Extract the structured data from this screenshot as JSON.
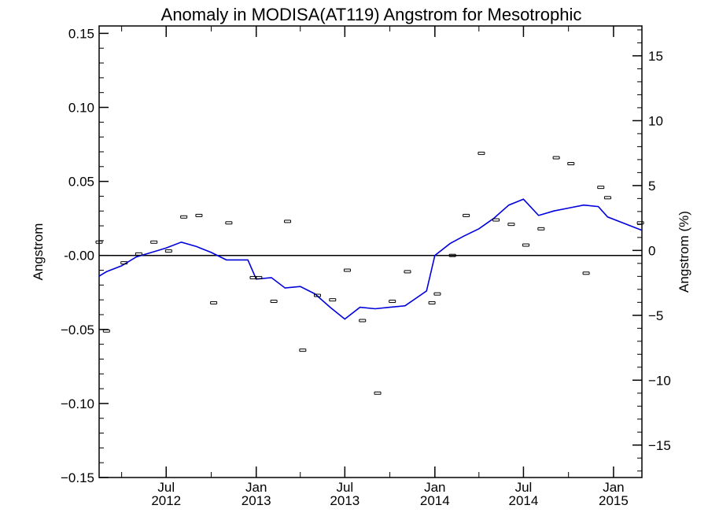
{
  "chart_data": {
    "type": "line",
    "title": "Anomaly in MODISA(AT119) Angstrom for Mesotrophic",
    "ylabel": "Angstrom",
    "ylabel_right": "Angstrom (%)",
    "ylim": [
      -0.15,
      0.155
    ],
    "ylim_right": [
      -17.5,
      17.3
    ],
    "xlim": [
      "2012-02-15",
      "2015-02-28"
    ],
    "y_ticks": [
      "0.15",
      "0.10",
      "0.05",
      "-0.00",
      "−0.05",
      "−0.10",
      "−0.15"
    ],
    "y_tick_values": [
      0.15,
      0.1,
      0.05,
      0.0,
      -0.05,
      -0.1,
      -0.15
    ],
    "y_right_ticks": [
      "15",
      "10",
      "5",
      "0",
      "−5",
      "−10",
      "−15"
    ],
    "y_right_tick_values": [
      15,
      10,
      5,
      0,
      -5,
      -10,
      -15
    ],
    "x_ticks": [
      {
        "date": "2012-07-01",
        "month": "Jul",
        "year": "2012"
      },
      {
        "date": "2013-01-01",
        "month": "Jan",
        "year": "2013"
      },
      {
        "date": "2013-07-01",
        "month": "Jul",
        "year": "2013"
      },
      {
        "date": "2014-01-01",
        "month": "Jan",
        "year": "2014"
      },
      {
        "date": "2014-07-01",
        "month": "Jul",
        "year": "2014"
      },
      {
        "date": "2015-01-01",
        "month": "Jan",
        "year": "2015"
      }
    ],
    "x_minor_ticks": [
      "2012-04-01",
      "2012-10-01",
      "2013-04-01",
      "2013-10-01",
      "2014-04-01",
      "2014-10-01"
    ],
    "zero_line": true,
    "grid": false,
    "series": [
      {
        "kind": "points-with-errorbars",
        "color": "#000000",
        "points": [
          {
            "x": "2012-02-15",
            "y": 0.009
          },
          {
            "x": "2012-03-01",
            "y": -0.051
          },
          {
            "x": "2012-04-06",
            "y": -0.005
          },
          {
            "x": "2012-05-06",
            "y": 0.001
          },
          {
            "x": "2012-06-06",
            "y": 0.009
          },
          {
            "x": "2012-07-06",
            "y": 0.003
          },
          {
            "x": "2012-08-06",
            "y": 0.026
          },
          {
            "x": "2012-09-06",
            "y": 0.027
          },
          {
            "x": "2012-10-06",
            "y": -0.032
          },
          {
            "x": "2012-11-06",
            "y": 0.022
          },
          {
            "x": "2012-12-26",
            "y": -0.015
          },
          {
            "x": "2013-01-06",
            "y": -0.015
          },
          {
            "x": "2013-02-06",
            "y": -0.031
          },
          {
            "x": "2013-03-06",
            "y": 0.023
          },
          {
            "x": "2013-04-06",
            "y": -0.064
          },
          {
            "x": "2013-05-06",
            "y": -0.027
          },
          {
            "x": "2013-06-06",
            "y": -0.03
          },
          {
            "x": "2013-07-06",
            "y": -0.01
          },
          {
            "x": "2013-08-06",
            "y": -0.044
          },
          {
            "x": "2013-09-06",
            "y": -0.093
          },
          {
            "x": "2013-10-06",
            "y": -0.031
          },
          {
            "x": "2013-11-06",
            "y": -0.011
          },
          {
            "x": "2013-12-26",
            "y": -0.032
          },
          {
            "x": "2014-01-06",
            "y": -0.026
          },
          {
            "x": "2014-02-06",
            "y": 0.0
          },
          {
            "x": "2014-03-06",
            "y": 0.027
          },
          {
            "x": "2014-04-06",
            "y": 0.069
          },
          {
            "x": "2014-05-06",
            "y": 0.024
          },
          {
            "x": "2014-06-06",
            "y": 0.021
          },
          {
            "x": "2014-07-06",
            "y": 0.007
          },
          {
            "x": "2014-08-06",
            "y": 0.018
          },
          {
            "x": "2014-09-06",
            "y": 0.066
          },
          {
            "x": "2014-10-06",
            "y": 0.062
          },
          {
            "x": "2014-11-06",
            "y": -0.012
          },
          {
            "x": "2014-12-06",
            "y": 0.046
          },
          {
            "x": "2014-12-20",
            "y": 0.039
          },
          {
            "x": "2015-02-25",
            "y": 0.022
          }
        ]
      },
      {
        "kind": "line",
        "color": "#0000dd",
        "points": [
          {
            "x": "2012-02-15",
            "y": -0.014
          },
          {
            "x": "2012-03-01",
            "y": -0.011
          },
          {
            "x": "2012-04-01",
            "y": -0.007
          },
          {
            "x": "2012-05-01",
            "y": -0.001
          },
          {
            "x": "2012-06-01",
            "y": 0.002
          },
          {
            "x": "2012-07-01",
            "y": 0.005
          },
          {
            "x": "2012-08-01",
            "y": 0.009
          },
          {
            "x": "2012-09-01",
            "y": 0.006
          },
          {
            "x": "2012-10-01",
            "y": 0.002
          },
          {
            "x": "2012-11-01",
            "y": -0.003
          },
          {
            "x": "2012-12-15",
            "y": -0.003
          },
          {
            "x": "2013-01-01",
            "y": -0.016
          },
          {
            "x": "2013-02-01",
            "y": -0.015
          },
          {
            "x": "2013-03-01",
            "y": -0.022
          },
          {
            "x": "2013-04-01",
            "y": -0.021
          },
          {
            "x": "2013-05-01",
            "y": -0.026
          },
          {
            "x": "2013-06-01",
            "y": -0.035
          },
          {
            "x": "2013-07-01",
            "y": -0.043
          },
          {
            "x": "2013-08-01",
            "y": -0.035
          },
          {
            "x": "2013-09-01",
            "y": -0.036
          },
          {
            "x": "2013-10-01",
            "y": -0.035
          },
          {
            "x": "2013-11-01",
            "y": -0.034
          },
          {
            "x": "2013-12-15",
            "y": -0.024
          },
          {
            "x": "2014-01-01",
            "y": 0.0
          },
          {
            "x": "2014-02-01",
            "y": 0.008
          },
          {
            "x": "2014-03-01",
            "y": 0.013
          },
          {
            "x": "2014-04-01",
            "y": 0.018
          },
          {
            "x": "2014-05-01",
            "y": 0.025
          },
          {
            "x": "2014-06-01",
            "y": 0.034
          },
          {
            "x": "2014-07-01",
            "y": 0.038
          },
          {
            "x": "2014-08-01",
            "y": 0.027
          },
          {
            "x": "2014-09-01",
            "y": 0.03
          },
          {
            "x": "2014-10-01",
            "y": 0.032
          },
          {
            "x": "2014-11-01",
            "y": 0.034
          },
          {
            "x": "2014-12-01",
            "y": 0.033
          },
          {
            "x": "2014-12-20",
            "y": 0.026
          },
          {
            "x": "2015-02-28",
            "y": 0.017
          }
        ]
      }
    ]
  }
}
